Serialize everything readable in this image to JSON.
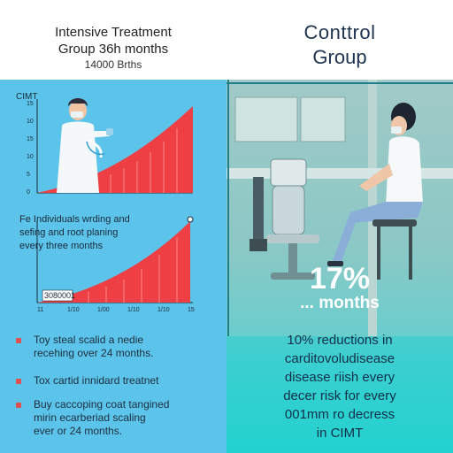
{
  "left": {
    "title_line1": "Intensive Treatment",
    "title_line2": "Group 36h months",
    "title_line3": "14000 Brths",
    "chart_top": {
      "axis_label": "CIMT",
      "y_ticks": [
        "15",
        "10",
        "15",
        "10",
        "5",
        "0"
      ]
    },
    "chart_bottom": {
      "text_line1": "Fe Individuals wrding and",
      "text_line2": "sefing and root planing",
      "text_line3": "every three months",
      "box_label": "3080001",
      "x_ticks": [
        "11",
        "1/10",
        "1/00",
        "1/10",
        "1/10",
        "15"
      ]
    },
    "bullets": [
      {
        "line1": "Toy steal scalid a nedie",
        "line2": "recehing over 24 months."
      },
      {
        "line1": "Tox cartid innidard treatnet",
        "line2": ""
      },
      {
        "line1": "Buy caccoping coat tangined",
        "line2": "mirin ecarberiad scaling",
        "line3": "ever or 24 months."
      }
    ]
  },
  "right": {
    "title_line1": "Conttrol",
    "title_line2": "Group",
    "percent": "17%",
    "months_label": "... months",
    "para_line1": "10% reductions in",
    "para_line2": "carditovoludisease",
    "para_line3": "disease riish every",
    "para_line4": "decer risk for every",
    "para_line5": "001mm ro decress",
    "para_line6": "in CIMT"
  },
  "colors": {
    "left_bg": "#5cc4ea",
    "right_bg_top": "#9cc7c5",
    "right_bg_bottom": "#22d2cf",
    "curve_fill": "#ee3f45",
    "title_dark": "#1e3350"
  },
  "icons": [
    "doctor-illustration",
    "patient-illustration",
    "dental-chair-illustration"
  ]
}
